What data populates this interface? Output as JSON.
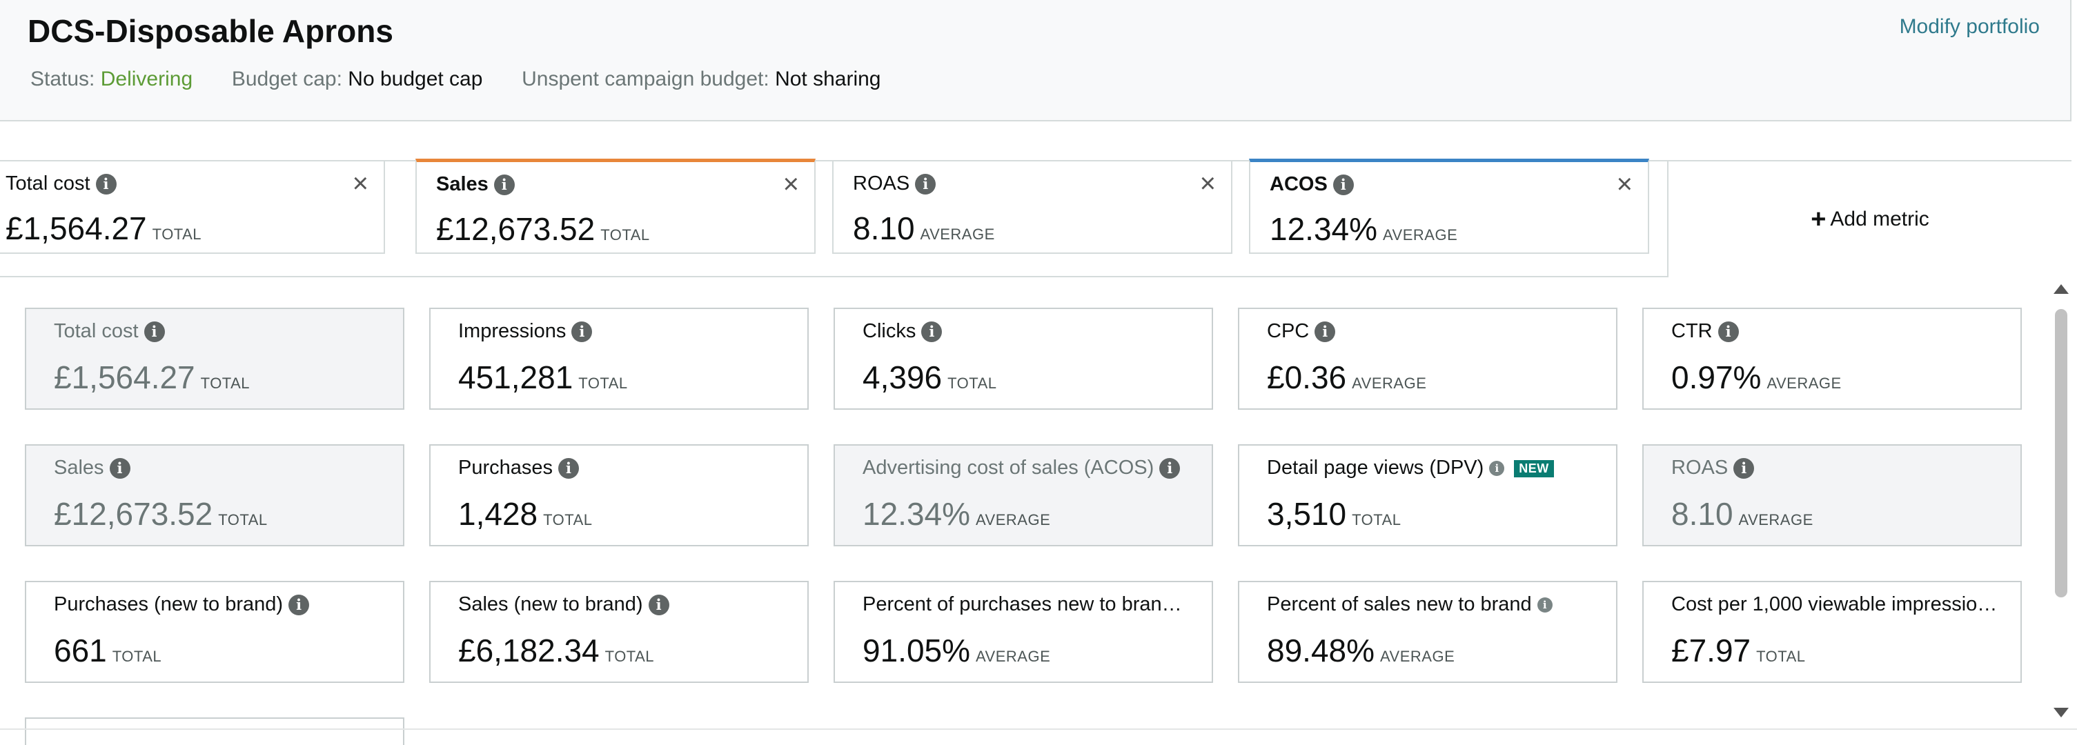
{
  "header": {
    "title": "DCS-Disposable Aprons",
    "modify_label": "Modify portfolio",
    "status_label": "Status:",
    "status_value": "Delivering",
    "budget_label": "Budget cap:",
    "budget_value": "No budget cap",
    "unspent_label": "Unspent campaign budget:",
    "unspent_value": "Not sharing"
  },
  "selected_metrics": [
    {
      "name": "Total cost",
      "value": "£1,564.27",
      "unit": "TOTAL",
      "accent": ""
    },
    {
      "name": "Sales",
      "value": "£12,673.52",
      "unit": "TOTAL",
      "accent": "#e8863a"
    },
    {
      "name": "ROAS",
      "value": "8.10",
      "unit": "AVERAGE",
      "accent": ""
    },
    {
      "name": "ACOS",
      "value": "12.34%",
      "unit": "AVERAGE",
      "accent": "#3b84c5"
    }
  ],
  "add_metric_label": "Add metric",
  "close_glyph": "×",
  "info_glyph": "i",
  "metrics": [
    {
      "name": "Total cost",
      "value": "£1,564.27",
      "unit": "TOTAL"
    },
    {
      "name": "Impressions",
      "value": "451,281",
      "unit": "TOTAL"
    },
    {
      "name": "Clicks",
      "value": "4,396",
      "unit": "TOTAL"
    },
    {
      "name": "CPC",
      "value": "£0.36",
      "unit": "AVERAGE"
    },
    {
      "name": "CTR",
      "value": "0.97%",
      "unit": "AVERAGE"
    },
    {
      "name": "Sales",
      "value": "£12,673.52",
      "unit": "TOTAL"
    },
    {
      "name": "Purchases",
      "value": "1,428",
      "unit": "TOTAL"
    },
    {
      "name": "Advertising cost of sales (ACOS)",
      "value": "12.34%",
      "unit": "AVERAGE"
    },
    {
      "name": "Detail page views (DPV)",
      "value": "3,510",
      "unit": "TOTAL",
      "badge": "NEW"
    },
    {
      "name": "ROAS",
      "value": "8.10",
      "unit": "AVERAGE"
    },
    {
      "name": "Purchases (new to brand)",
      "value": "661",
      "unit": "TOTAL"
    },
    {
      "name": "Sales (new to brand)",
      "value": "£6,182.34",
      "unit": "TOTAL"
    },
    {
      "name": "Percent of purchases new to bran…",
      "value": "91.05%",
      "unit": "AVERAGE"
    },
    {
      "name": "Percent of sales new to brand",
      "value": "89.48%",
      "unit": "AVERAGE"
    },
    {
      "name": "Cost per 1,000 viewable impressio…",
      "value": "£7.97",
      "unit": "TOTAL"
    }
  ],
  "colors": {
    "status_green": "#5c9b35",
    "link": "#2f7a8c",
    "sales_accent": "#e8863a",
    "acos_accent": "#3b84c5",
    "new_badge": "#0a7c72"
  }
}
